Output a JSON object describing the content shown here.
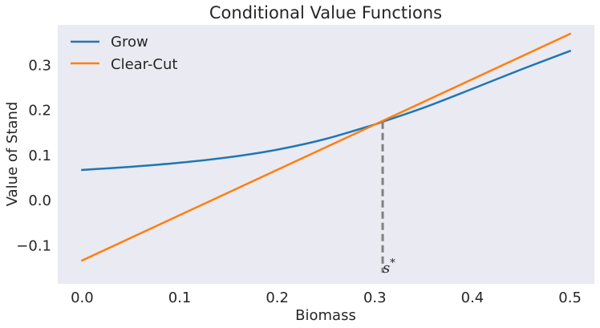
{
  "chart_data": {
    "type": "line",
    "title": "Conditional Value Functions",
    "xlabel": "Biomass",
    "ylabel": "Value of Stand",
    "xlim": [
      -0.025,
      0.525
    ],
    "ylim": [
      -0.185,
      0.39
    ],
    "xticks": [
      0.0,
      0.1,
      0.2,
      0.3,
      0.4,
      0.5
    ],
    "xtick_labels": [
      "0.0",
      "0.1",
      "0.2",
      "0.3",
      "0.4",
      "0.5"
    ],
    "yticks": [
      -0.1,
      0.0,
      0.1,
      0.2,
      0.3
    ],
    "ytick_labels": [
      "−0.1",
      "0.0",
      "0.1",
      "0.2",
      "0.3"
    ],
    "grid": false,
    "legend_position": "upper-left",
    "series": [
      {
        "name": "Grow",
        "color": "#1f77b4",
        "x": [
          0.0,
          0.05,
          0.1,
          0.15,
          0.2,
          0.25,
          0.3,
          0.308,
          0.35,
          0.4,
          0.45,
          0.5
        ],
        "y": [
          0.068,
          0.075,
          0.084,
          0.096,
          0.113,
          0.137,
          0.169,
          0.175,
          0.206,
          0.248,
          0.291,
          0.332
        ]
      },
      {
        "name": "Clear-Cut",
        "color": "#ff7f0e",
        "x": [
          0.0,
          0.5
        ],
        "y": [
          -0.133,
          0.37
        ]
      }
    ],
    "annotations": [
      {
        "text": "s*",
        "x": 0.308,
        "y_top": 0.175,
        "y_bottom": -0.16,
        "line_color": "#808080",
        "line_style": "dashed"
      }
    ]
  },
  "legend": {
    "items": [
      {
        "label": "Grow",
        "color": "#1f77b4"
      },
      {
        "label": "Clear-Cut",
        "color": "#ff7f0e"
      }
    ]
  },
  "theme": {
    "plot_background": "#eaeaf2",
    "text_color": "#262626"
  }
}
